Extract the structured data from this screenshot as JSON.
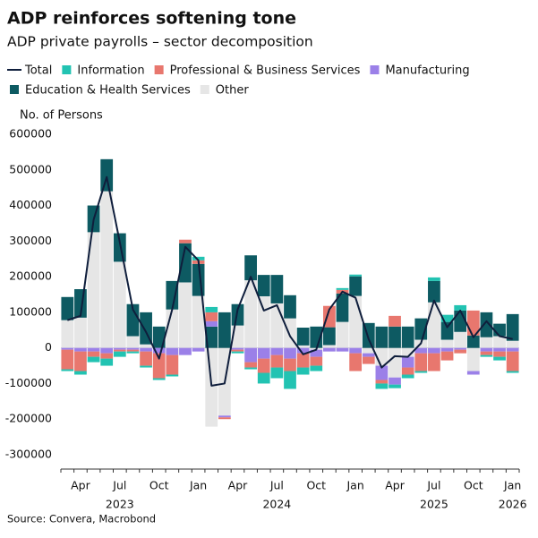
{
  "chart_data": {
    "type": "bar",
    "title": "ADP reinforces softening tone",
    "subtitle": "ADP private payrolls – sector decomposition",
    "y_label": "No. of Persons",
    "source": "Source: Convera, Macrobond",
    "stacked": true,
    "categories": [
      null,
      "Apr",
      null,
      null,
      "Jul",
      null,
      null,
      "Oct",
      null,
      null,
      "Jan",
      null,
      null,
      "Apr",
      null,
      null,
      "Jul",
      null,
      null,
      "Oct",
      null,
      null,
      "Jan",
      null,
      null,
      "Apr",
      null,
      null,
      "Jul",
      null,
      null,
      "Oct",
      null,
      null,
      "Jan"
    ],
    "category_years": [
      null,
      null,
      null,
      null,
      "2023",
      null,
      null,
      null,
      null,
      null,
      null,
      null,
      null,
      null,
      null,
      null,
      "2024",
      null,
      null,
      null,
      null,
      null,
      null,
      null,
      null,
      null,
      null,
      null,
      "2025",
      null,
      null,
      null,
      null,
      null,
      "2026"
    ],
    "series": [
      {
        "name": "Total",
        "type": "line",
        "color": "#0f1e3c",
        "values": [
          78000,
          90000,
          360000,
          480000,
          297000,
          108000,
          45000,
          -30000,
          108000,
          284000,
          246000,
          -106000,
          -100000,
          108000,
          200000,
          105000,
          120000,
          33000,
          -18000,
          -5000,
          108000,
          158000,
          141000,
          25000,
          -55000,
          -23000,
          -25000,
          13000,
          133000,
          58000,
          105000,
          30000,
          75000,
          33000,
          25000
        ]
      },
      {
        "name": "Information",
        "type": "bar",
        "color": "#22c3b2",
        "values": [
          -5000,
          -10000,
          -15000,
          -20000,
          -15000,
          -5000,
          -5000,
          -5000,
          -5000,
          0,
          10000,
          15000,
          0,
          -5000,
          -5000,
          -30000,
          -30000,
          -50000,
          -20000,
          -15000,
          0,
          5000,
          5000,
          0,
          -15000,
          -10000,
          -10000,
          -5000,
          10000,
          20000,
          15000,
          0,
          -5000,
          -10000,
          -5000
        ]
      },
      {
        "name": "Professional & Business Services",
        "type": "bar",
        "color": "#e8776e",
        "values": [
          -55000,
          -55000,
          -15000,
          -15000,
          -5000,
          -5000,
          -40000,
          -70000,
          -55000,
          10000,
          10000,
          25000,
          -5000,
          -5000,
          -15000,
          -40000,
          -35000,
          -35000,
          -40000,
          -25000,
          60000,
          10000,
          -50000,
          -20000,
          -10000,
          30000,
          -20000,
          -50000,
          -50000,
          -25000,
          -10000,
          70000,
          -10000,
          -15000,
          -55000
        ]
      },
      {
        "name": "Manufacturing",
        "type": "bar",
        "color": "#9b80e8",
        "values": [
          -5000,
          -10000,
          -10000,
          -15000,
          -5000,
          -5000,
          -10000,
          -15000,
          -20000,
          -20000,
          -10000,
          15000,
          -5000,
          -5000,
          -40000,
          -30000,
          -20000,
          -30000,
          -15000,
          -20000,
          -10000,
          -10000,
          -15000,
          -10000,
          -40000,
          -20000,
          -30000,
          -15000,
          -15000,
          -10000,
          -5000,
          -10000,
          -10000,
          -10000,
          -10000
        ]
      },
      {
        "name": "Education & Health Services",
        "type": "bar",
        "color": "#0d5a62",
        "values": [
          65000,
          80000,
          75000,
          90000,
          80000,
          90000,
          90000,
          60000,
          80000,
          110000,
          90000,
          60000,
          100000,
          60000,
          70000,
          60000,
          80000,
          65000,
          50000,
          60000,
          50000,
          80000,
          55000,
          70000,
          60000,
          60000,
          60000,
          60000,
          60000,
          50000,
          60000,
          35000,
          70000,
          35000,
          75000
        ]
      },
      {
        "name": "Other",
        "type": "bar",
        "color": "#e6e6e6",
        "values": [
          78000,
          85000,
          325000,
          440000,
          242000,
          33000,
          10000,
          0,
          108000,
          184000,
          146000,
          -221000,
          -190000,
          63000,
          190000,
          145000,
          125000,
          83000,
          7000,
          -5000,
          8000,
          73000,
          146000,
          -15000,
          -50000,
          -83000,
          -25000,
          23000,
          128000,
          23000,
          45000,
          -65000,
          30000,
          33000,
          20000
        ]
      }
    ],
    "stack_order": [
      "Other",
      "Education & Health Services",
      "Manufacturing",
      "Professional & Business Services",
      "Information"
    ],
    "ylim": [
      -320000,
      630000
    ],
    "yticks": [
      -300000,
      -200000,
      -100000,
      0,
      100000,
      200000,
      300000,
      400000,
      500000,
      600000
    ],
    "grid": false
  }
}
